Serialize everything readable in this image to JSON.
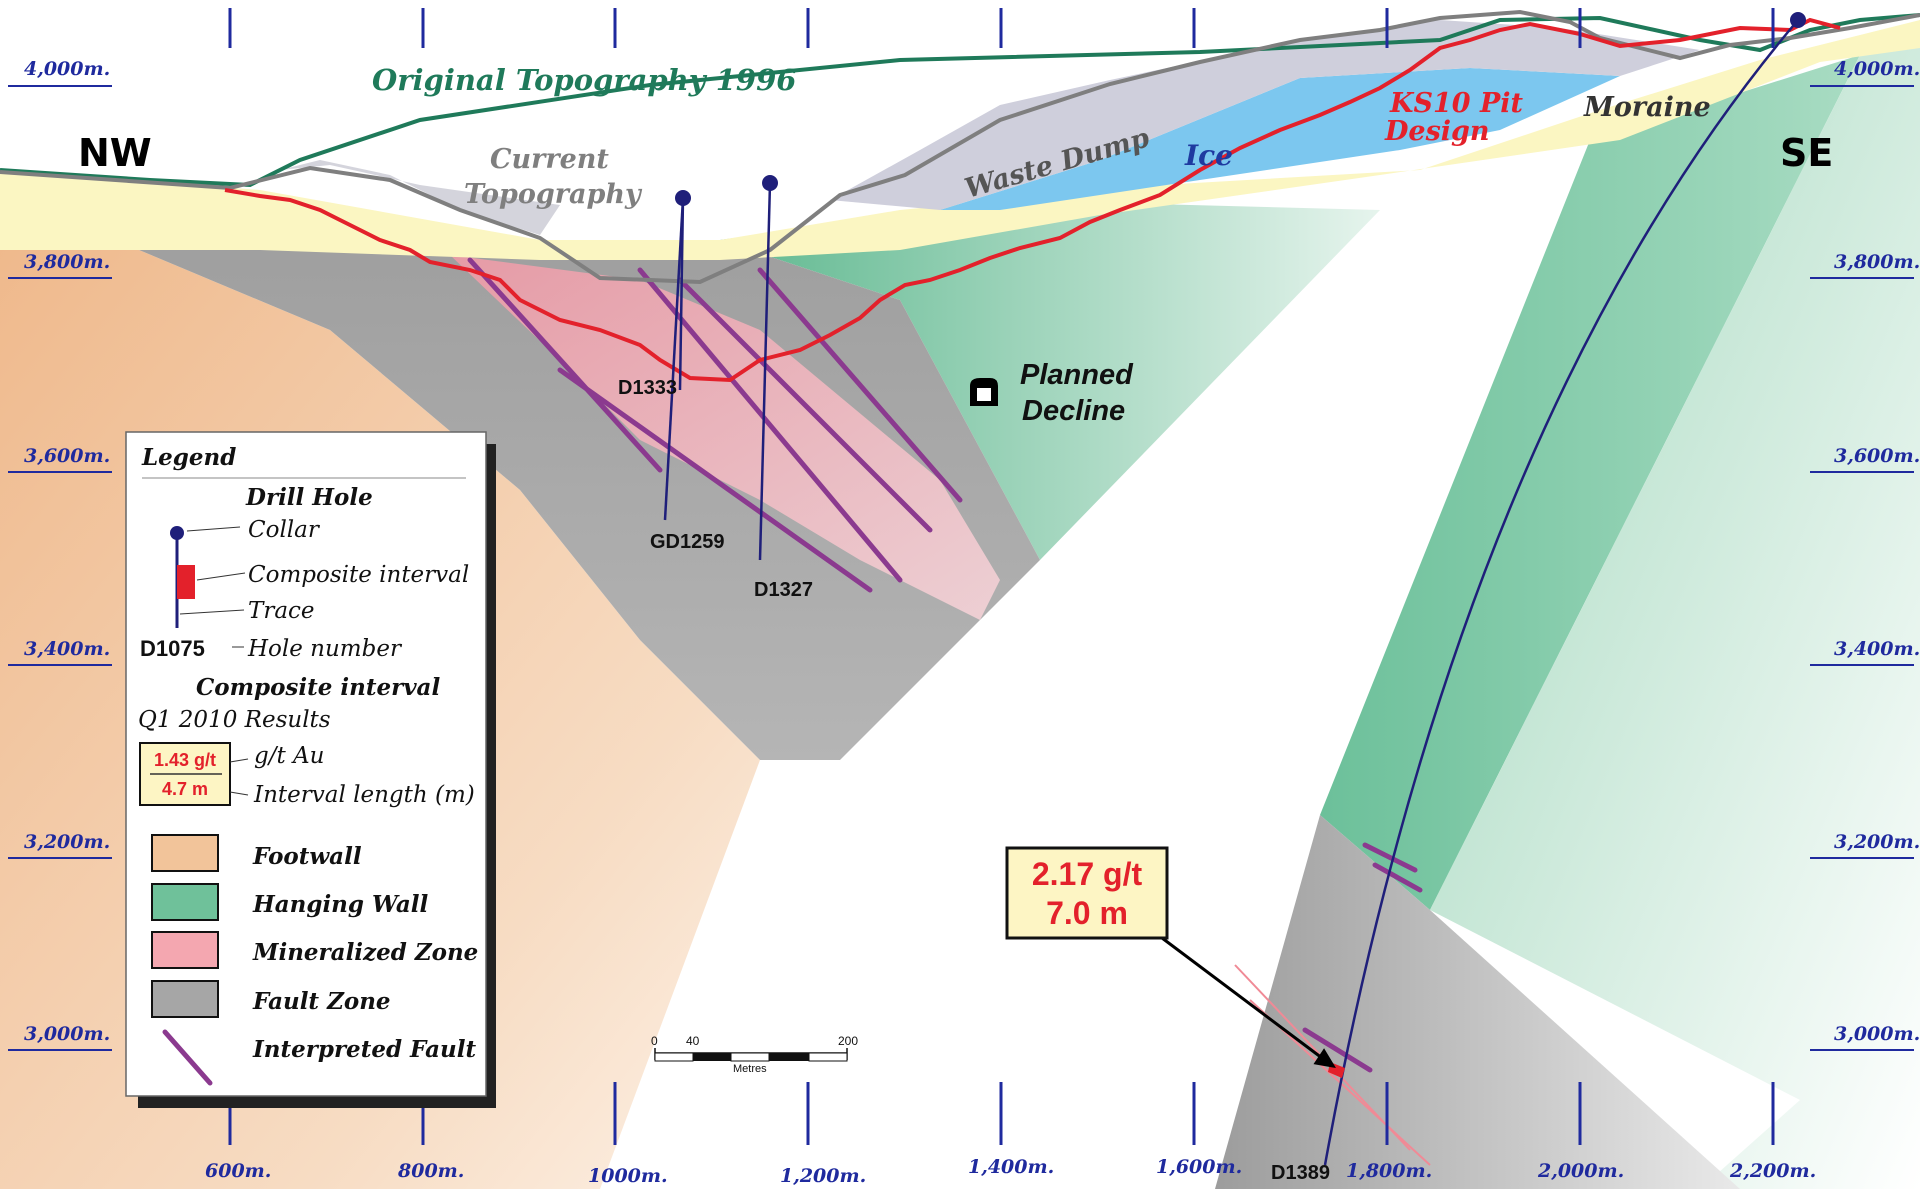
{
  "directions": {
    "left": "NW",
    "right": "SE"
  },
  "elevation_labels": [
    "4,000m.",
    "3,800m.",
    "3,600m.",
    "3,400m.",
    "3,200m.",
    "3,000m."
  ],
  "distance_labels": [
    "600m.",
    "800m.",
    "1000m.",
    "1,200m.",
    "1,400m.",
    "1,600m.",
    "1,800m.",
    "2,000m.",
    "2,200m."
  ],
  "annotations": {
    "original_topography": "Original Topography 1996",
    "current_topography_line1": "Current",
    "current_topography_line2": "Topography",
    "waste_dump": "Waste Dump",
    "ice": "Ice",
    "pit_design_line1": "KS10 Pit",
    "pit_design_line2": "Design",
    "moraine": "Moraine",
    "planned_decline_line1": "Planned",
    "planned_decline_line2": "Decline"
  },
  "drill_holes": [
    "D1333",
    "GD1259",
    "D1327",
    "D1389"
  ],
  "result_callout": {
    "grade": "2.17 g/t",
    "length": "7.0 m"
  },
  "legend": {
    "title": "Legend",
    "drill_hole_heading": "Drill Hole",
    "collar": "Collar",
    "composite_interval": "Composite interval",
    "trace": "Trace",
    "hole_number_example": "D1075",
    "hole_number": "Hole number",
    "composite_heading": "Composite interval",
    "results_period": "Q1 2010 Results",
    "sample_grade": "1.43 g/t",
    "sample_length": "4.7 m",
    "grade_unit": "g/t Au",
    "interval_length": "Interval length (m)",
    "items": [
      {
        "label": "Footwall",
        "color": "#f2c49a"
      },
      {
        "label": "Hanging Wall",
        "color": "#6fc19a"
      },
      {
        "label": "Mineralized Zone",
        "color": "#f4a7b0"
      },
      {
        "label": "Fault Zone",
        "color": "#a6a6a6"
      },
      {
        "label": "Interpreted Fault",
        "color": "#8b3a8f"
      }
    ]
  },
  "scale_bar": {
    "tick_0": "0",
    "tick_40": "40",
    "tick_200": "200",
    "unit": "Metres"
  },
  "colors": {
    "footwall": "#f2c49a",
    "hanging_wall": "#6fc19a",
    "mineralized": "#f4a7b0",
    "fault_zone": "#a6a6a6",
    "fault_line": "#8b3a8f",
    "pit_design": "#e3212b",
    "original_topo": "#1f7a5a",
    "current_topo": "#7f7f7f",
    "ice": "#7cc7ef",
    "moraine": "#fbf6c2",
    "axis": "#1f2a9e",
    "drill": "#1f1f7a"
  }
}
